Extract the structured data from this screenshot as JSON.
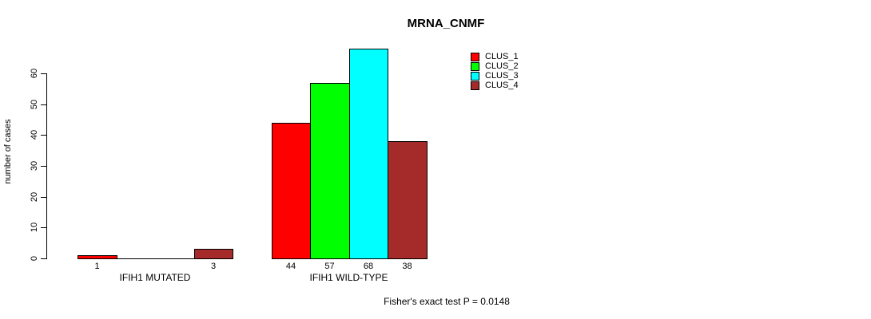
{
  "title": "MRNA_CNMF",
  "annotation": "Fisher's exact test P = 0.0148",
  "chart_data": {
    "type": "bar",
    "title": "MRNA_CNMF",
    "ylabel": "number of cases",
    "xlabel": "",
    "ylim": [
      0,
      60
    ],
    "yticks": [
      0,
      10,
      20,
      30,
      40,
      50,
      60
    ],
    "grid": false,
    "legend_position": "top-right-inside",
    "groups": [
      "IFIH1 MUTATED",
      "IFIH1 WILD-TYPE"
    ],
    "series": [
      {
        "name": "CLUS_1",
        "color": "#ff0000",
        "values": [
          1,
          44
        ]
      },
      {
        "name": "CLUS_2",
        "color": "#00ff00",
        "values": [
          0,
          57
        ]
      },
      {
        "name": "CLUS_3",
        "color": "#00ffff",
        "values": [
          0,
          68
        ]
      },
      {
        "name": "CLUS_4",
        "color": "#a52a2a",
        "values": [
          3,
          38
        ]
      }
    ],
    "bar_value_labels": {
      "shown": true,
      "zeros_omitted": true
    },
    "annotation": "Fisher's exact test P = 0.0148"
  }
}
